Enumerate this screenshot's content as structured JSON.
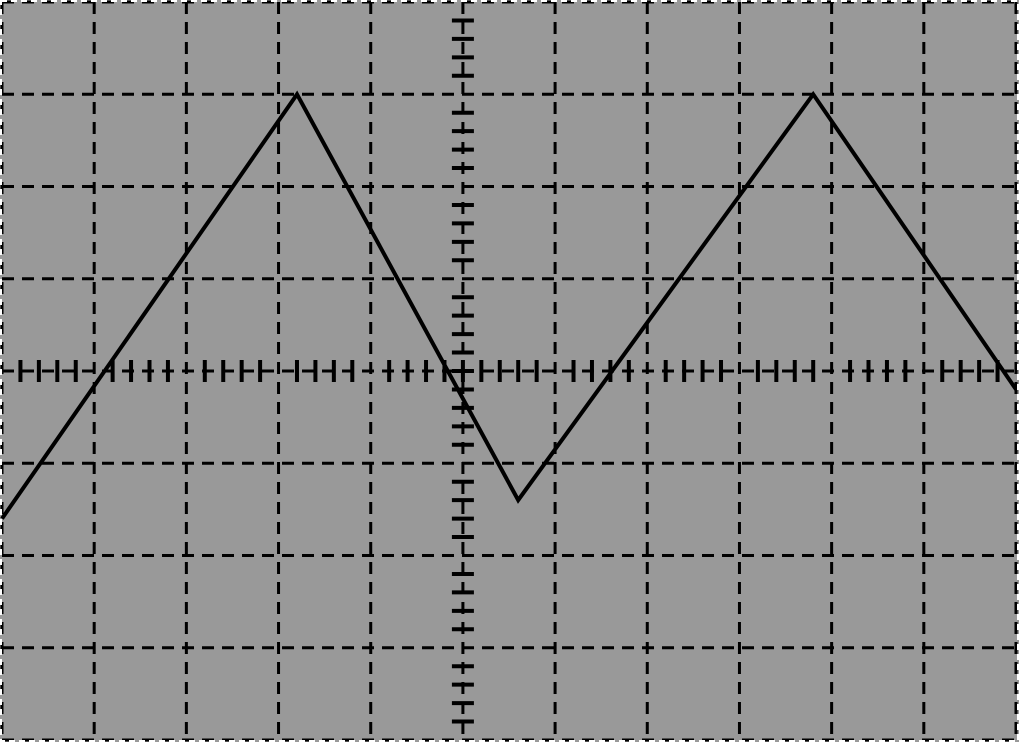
{
  "chart_data": {
    "type": "line",
    "title": "",
    "xlabel": "",
    "ylabel": "",
    "grid": true,
    "grid_style": "dashed",
    "axes_style": "oscilloscope-center-ticks",
    "minor_ticks_per_division": 5,
    "xlim": [
      0,
      11
    ],
    "ylim": [
      -4,
      4
    ],
    "series": [
      {
        "points": [
          [
            0,
            -1.6
          ],
          [
            3.2,
            3.0
          ],
          [
            5.6,
            -1.4
          ],
          [
            8.8,
            3.0
          ],
          [
            11,
            -0.2
          ]
        ]
      }
    ],
    "colors": {
      "screen": "#999999",
      "grid": "#000000",
      "trace": "#000000",
      "frame": "#ffffff"
    }
  }
}
